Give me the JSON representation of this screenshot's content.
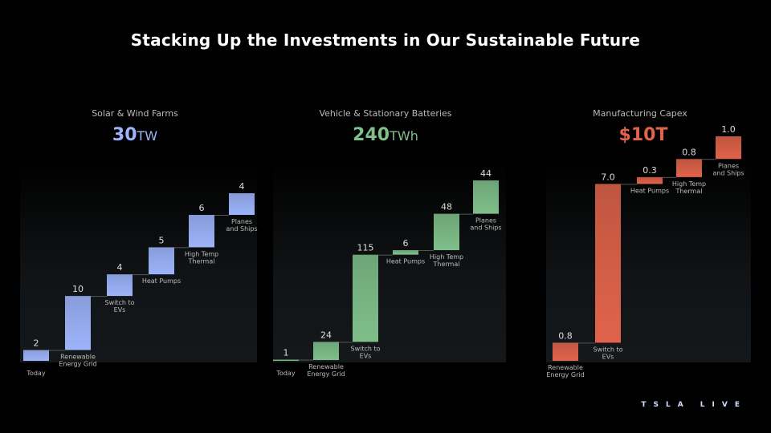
{
  "title": "Stacking Up the Investments in Our Sustainable Future",
  "logo": "TSLA LIVE",
  "chart_data": [
    {
      "type": "bar",
      "subtype": "waterfall",
      "title": "Solar & Wind Farms",
      "total": "30",
      "unit": "TW",
      "color": "#9db4fb",
      "categories": [
        "Today",
        "Renewable Energy Grid",
        "Switch to EVs",
        "Heat Pumps",
        "High Temp Thermal",
        "Planes and Ships"
      ],
      "values": [
        2,
        10,
        4,
        5,
        6,
        4
      ],
      "labels": [
        "2",
        "10",
        "4",
        "5",
        "6",
        "4"
      ]
    },
    {
      "type": "bar",
      "subtype": "waterfall",
      "title": "Vehicle & Stationary Batteries",
      "total": "240",
      "unit": "TWh",
      "color": "#7fbf8a",
      "categories": [
        "Today",
        "Renewable Energy Grid",
        "Switch to EVs",
        "Heat Pumps",
        "High Temp Thermal",
        "Planes and Ships"
      ],
      "values": [
        1,
        24,
        115,
        6,
        48,
        44
      ],
      "labels": [
        "1",
        "24",
        "115",
        "6",
        "48",
        "44"
      ]
    },
    {
      "type": "bar",
      "subtype": "waterfall",
      "title": "Manufacturing Capex",
      "total": "$10T",
      "unit": "",
      "color": "#e0634a",
      "categories": [
        "Renewable Energy Grid",
        "Switch to EVs",
        "Heat Pumps",
        "High Temp Thermal",
        "Planes and Ships"
      ],
      "values": [
        0.8,
        7.0,
        0.3,
        0.8,
        1.0
      ],
      "labels": [
        "0.8",
        "7.0",
        "0.3",
        "0.8",
        "1.0"
      ]
    }
  ]
}
